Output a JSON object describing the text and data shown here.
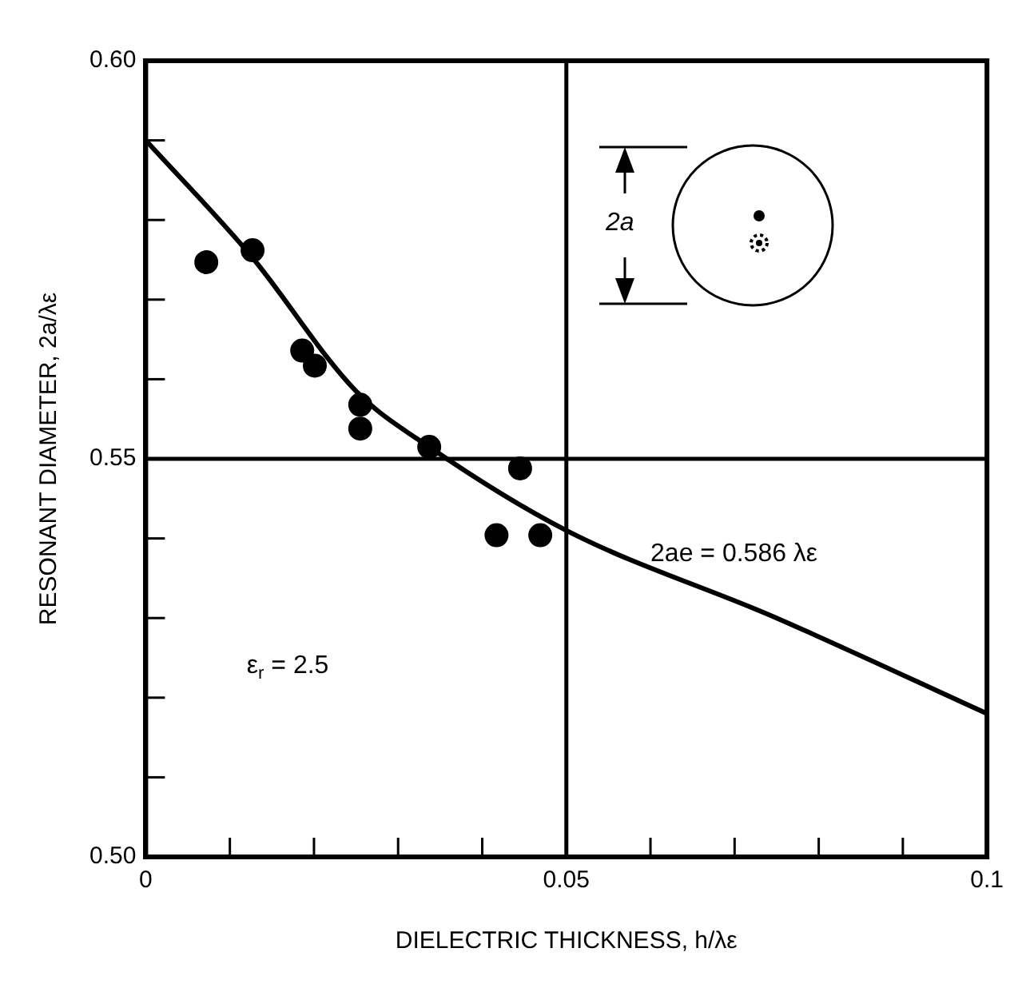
{
  "chart_data": {
    "type": "scatter",
    "xlabel": "DIELECTRIC THICKNESS, h/λε",
    "ylabel": "RESONANT DIAMETER, 2a/λε",
    "series": [
      {
        "color": "#000000",
        "marker": "circle",
        "x": [
          0.0072,
          0.0127,
          0.0186,
          0.0201,
          0.0255,
          0.0255,
          0.0337,
          0.0445,
          0.0417,
          0.0469
        ],
        "values": [
          0.5747,
          0.5762,
          0.5636,
          0.5617,
          0.5568,
          0.5538,
          0.5515,
          0.5488,
          0.5404,
          0.5404
        ]
      },
      {
        "type": "line",
        "color": "#000000",
        "marker": "none",
        "x": [
          0,
          0.0125,
          0.025,
          0.0337,
          0.05,
          0.075,
          0.1
        ],
        "values": [
          0.59,
          0.5755,
          0.5585,
          0.5515,
          0.541,
          0.53,
          0.518
        ]
      }
    ],
    "xlim": [
      0,
      0.1
    ],
    "xticks": [
      0,
      {
        "value": 0.01,
        "label": null
      },
      {
        "value": 0.02,
        "label": null
      },
      {
        "value": 0.03,
        "label": null
      },
      {
        "value": 0.04,
        "label": null
      },
      0.05,
      {
        "value": 0.06,
        "label": null
      },
      {
        "value": 0.07,
        "label": null
      },
      {
        "value": 0.08,
        "label": null
      },
      {
        "value": 0.09,
        "label": null
      },
      0.1
    ],
    "ylim": [
      0.5,
      0.6
    ],
    "yticks": [
      {
        "value": 0.5,
        "label": "0.50"
      },
      {
        "value": 0.51,
        "label": null
      },
      {
        "value": 0.52,
        "label": null
      },
      {
        "value": 0.53,
        "label": null
      },
      {
        "value": 0.54,
        "label": null
      },
      0.55,
      {
        "value": 0.56,
        "label": null
      },
      {
        "value": 0.57,
        "label": null
      },
      {
        "value": 0.58,
        "label": null
      },
      {
        "value": 0.59,
        "label": null
      },
      {
        "value": 0.6,
        "label": "0.60"
      }
    ],
    "ref_lines": [
      {
        "axis": "x",
        "value": 0.05,
        "color": "#000000"
      },
      {
        "axis": "y",
        "value": 0.55,
        "color": "#000000"
      }
    ],
    "annotations": [
      "2ae = 0.586 λε",
      "ε$_{r}$ = 2.5",
      "2a"
    ],
    "grid": false,
    "legend": false
  }
}
